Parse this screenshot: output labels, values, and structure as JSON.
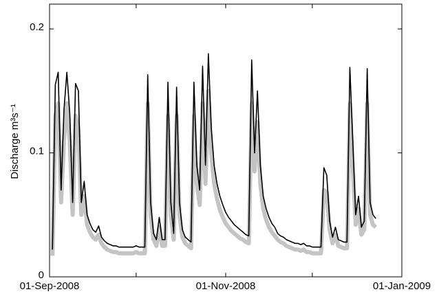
{
  "chart_data": {
    "type": "line",
    "ylabel": "Discharge  m³s⁻¹",
    "xlim": [
      "2008-09-01",
      "2009-01-01"
    ],
    "xticks": [
      {
        "value": "2008-09-01",
        "label": "01-Sep-2008"
      },
      {
        "value": "2008-11-01",
        "label": "01-Nov-2008"
      },
      {
        "value": "2009-01-01",
        "label": "01-Jan-2009"
      }
    ],
    "xminorticks": [
      "2008-10-01",
      "2008-12-01"
    ],
    "ylim": [
      0,
      0.22
    ],
    "yticks": [
      0,
      0.1,
      0.2
    ],
    "x": [
      "2008-09-02",
      "2008-09-03",
      "2008-09-04",
      "2008-09-05",
      "2008-09-06",
      "2008-09-07",
      "2008-09-08",
      "2008-09-09",
      "2008-09-10",
      "2008-09-11",
      "2008-09-12",
      "2008-09-13",
      "2008-09-14",
      "2008-09-15",
      "2008-09-16",
      "2008-09-17",
      "2008-09-18",
      "2008-09-19",
      "2008-09-20",
      "2008-09-21",
      "2008-09-22",
      "2008-09-23",
      "2008-09-24",
      "2008-09-25",
      "2008-09-26",
      "2008-09-27",
      "2008-09-28",
      "2008-09-29",
      "2008-09-30",
      "2008-10-01",
      "2008-10-02",
      "2008-10-03",
      "2008-10-04",
      "2008-10-05",
      "2008-10-06",
      "2008-10-07",
      "2008-10-08",
      "2008-10-09",
      "2008-10-10",
      "2008-10-11",
      "2008-10-12",
      "2008-10-13",
      "2008-10-14",
      "2008-10-15",
      "2008-10-16",
      "2008-10-17",
      "2008-10-18",
      "2008-10-19",
      "2008-10-20",
      "2008-10-21",
      "2008-10-22",
      "2008-10-23",
      "2008-10-24",
      "2008-10-25",
      "2008-10-26",
      "2008-10-27",
      "2008-10-28",
      "2008-10-29",
      "2008-10-30",
      "2008-10-31",
      "2008-11-01",
      "2008-11-02",
      "2008-11-03",
      "2008-11-04",
      "2008-11-05",
      "2008-11-06",
      "2008-11-07",
      "2008-11-08",
      "2008-11-09",
      "2008-11-10",
      "2008-11-11",
      "2008-11-12",
      "2008-11-13",
      "2008-11-14",
      "2008-11-15",
      "2008-11-16",
      "2008-11-17",
      "2008-11-18",
      "2008-11-19",
      "2008-11-20",
      "2008-11-21",
      "2008-11-22",
      "2008-11-23",
      "2008-11-24",
      "2008-11-25",
      "2008-11-26",
      "2008-11-27",
      "2008-11-28",
      "2008-11-29",
      "2008-11-30",
      "2008-12-01",
      "2008-12-02",
      "2008-12-03",
      "2008-12-04",
      "2008-12-05",
      "2008-12-06",
      "2008-12-07",
      "2008-12-08",
      "2008-12-09",
      "2008-12-10",
      "2008-12-11",
      "2008-12-12",
      "2008-12-13",
      "2008-12-14",
      "2008-12-15",
      "2008-12-16",
      "2008-12-17",
      "2008-12-18",
      "2008-12-19",
      "2008-12-20",
      "2008-12-21",
      "2008-12-22",
      "2008-12-23"
    ],
    "series": [
      {
        "color": "#c4c4c4",
        "width": 6,
        "values": [
          0.017,
          0.13,
          0.14,
          0.06,
          0.11,
          0.14,
          0.11,
          0.05,
          0.13,
          0.12,
          0.05,
          0.065,
          0.042,
          0.036,
          0.032,
          0.03,
          0.034,
          0.027,
          0.024,
          0.022,
          0.021,
          0.02,
          0.02,
          0.019,
          0.019,
          0.019,
          0.019,
          0.019,
          0.019,
          0.02,
          0.019,
          0.019,
          0.019,
          0.14,
          0.05,
          0.03,
          0.025,
          0.04,
          0.025,
          0.025,
          0.13,
          0.05,
          0.03,
          0.13,
          0.05,
          0.032,
          0.027,
          0.025,
          0.023,
          0.13,
          0.075,
          0.058,
          0.14,
          0.075,
          0.15,
          0.1,
          0.075,
          0.063,
          0.054,
          0.048,
          0.043,
          0.04,
          0.037,
          0.035,
          0.033,
          0.031,
          0.03,
          0.028,
          0.027,
          0.14,
          0.085,
          0.125,
          0.075,
          0.055,
          0.046,
          0.04,
          0.036,
          0.033,
          0.03,
          0.028,
          0.027,
          0.025,
          0.024,
          0.023,
          0.022,
          0.022,
          0.021,
          0.022,
          0.02,
          0.02,
          0.019,
          0.019,
          0.019,
          0.019,
          0.07,
          0.068,
          0.038,
          0.027,
          0.034,
          0.025,
          0.024,
          0.023,
          0.023,
          0.14,
          0.09,
          0.042,
          0.055,
          0.034,
          0.038,
          0.14,
          0.05,
          0.042,
          0.04
        ]
      },
      {
        "color": "#000000",
        "width": 1.6,
        "values": [
          0.022,
          0.155,
          0.165,
          0.07,
          0.135,
          0.165,
          0.132,
          0.06,
          0.156,
          0.15,
          0.06,
          0.077,
          0.05,
          0.043,
          0.038,
          0.036,
          0.041,
          0.032,
          0.029,
          0.027,
          0.026,
          0.025,
          0.025,
          0.024,
          0.024,
          0.024,
          0.024,
          0.024,
          0.024,
          0.025,
          0.024,
          0.024,
          0.024,
          0.163,
          0.06,
          0.035,
          0.03,
          0.048,
          0.03,
          0.03,
          0.157,
          0.06,
          0.035,
          0.153,
          0.06,
          0.038,
          0.032,
          0.03,
          0.028,
          0.157,
          0.09,
          0.07,
          0.17,
          0.09,
          0.18,
          0.12,
          0.09,
          0.075,
          0.065,
          0.058,
          0.052,
          0.048,
          0.045,
          0.042,
          0.04,
          0.038,
          0.036,
          0.034,
          0.033,
          0.175,
          0.1,
          0.15,
          0.09,
          0.065,
          0.055,
          0.048,
          0.043,
          0.04,
          0.035,
          0.033,
          0.032,
          0.03,
          0.029,
          0.028,
          0.027,
          0.027,
          0.026,
          0.027,
          0.025,
          0.025,
          0.024,
          0.024,
          0.024,
          0.024,
          0.088,
          0.082,
          0.045,
          0.032,
          0.04,
          0.03,
          0.029,
          0.028,
          0.028,
          0.169,
          0.11,
          0.05,
          0.065,
          0.04,
          0.045,
          0.168,
          0.06,
          0.05,
          0.047
        ]
      }
    ]
  }
}
